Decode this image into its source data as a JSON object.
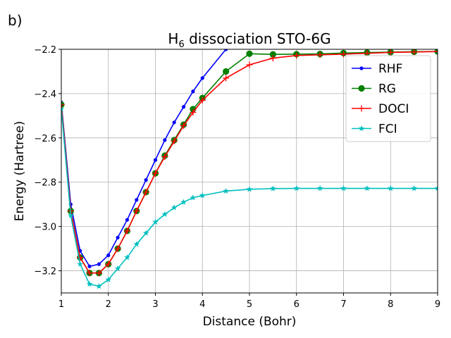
{
  "panel_label": "b)",
  "chart_data": {
    "type": "line",
    "title_prefix": "H",
    "title_subscript": "6",
    "title_suffix": " dissociation STO-6G",
    "xlabel": "Distance (Bohr)",
    "ylabel": "Energy (Hartree)",
    "xlim": [
      1,
      9
    ],
    "ylim": [
      -3.3,
      -2.2
    ],
    "grid": true,
    "legend_position": "top-right",
    "x_ticks": [
      1,
      2,
      3,
      4,
      5,
      6,
      7,
      8,
      9
    ],
    "x_tick_labels": [
      "1",
      "2",
      "3",
      "4",
      "5",
      "6",
      "7",
      "8",
      "9"
    ],
    "y_ticks": [
      -2.2,
      -2.4,
      -2.6,
      -2.8,
      -3.0,
      -3.2
    ],
    "y_tick_labels": [
      "−2.2",
      "−2.4",
      "−2.6",
      "−2.8",
      "−3.0",
      "−3.2"
    ],
    "series": [
      {
        "name": "RHF",
        "color": "#0000ff",
        "marker": "dot",
        "x": [
          1.0,
          1.2,
          1.4,
          1.6,
          1.8,
          2.0,
          2.2,
          2.4,
          2.6,
          2.8,
          3.0,
          3.2,
          3.4,
          3.6,
          3.8,
          4.0,
          4.5
        ],
        "y": [
          -2.44,
          -2.9,
          -3.11,
          -3.18,
          -3.17,
          -3.13,
          -3.05,
          -2.97,
          -2.88,
          -2.79,
          -2.7,
          -2.61,
          -2.53,
          -2.46,
          -2.39,
          -2.33,
          -2.2
        ]
      },
      {
        "name": "RG",
        "color": "#008000",
        "marker": "circle",
        "x": [
          1.0,
          1.2,
          1.4,
          1.6,
          1.8,
          2.0,
          2.2,
          2.4,
          2.6,
          2.8,
          3.0,
          3.2,
          3.4,
          3.6,
          3.8,
          4.0,
          4.5,
          5.0,
          5.5,
          6.0,
          6.5,
          7.0,
          7.5,
          8.0,
          8.5,
          9.0
        ],
        "y": [
          -2.45,
          -2.93,
          -3.14,
          -3.21,
          -3.21,
          -3.17,
          -3.1,
          -3.02,
          -2.93,
          -2.845,
          -2.76,
          -2.68,
          -2.61,
          -2.54,
          -2.47,
          -2.42,
          -2.3,
          -2.22,
          -2.223,
          -2.222,
          -2.221,
          -2.217,
          -2.215,
          -2.213,
          -2.211,
          -2.21
        ]
      },
      {
        "name": "DOCI",
        "color": "#ff0000",
        "marker": "plus",
        "x": [
          1.0,
          1.2,
          1.4,
          1.6,
          1.8,
          2.0,
          2.2,
          2.4,
          2.6,
          2.8,
          3.0,
          3.2,
          3.4,
          3.6,
          3.8,
          4.0,
          4.5,
          5.0,
          5.5,
          6.0,
          6.5,
          7.0,
          7.5,
          8.0,
          8.5,
          9.0
        ],
        "y": [
          -2.45,
          -2.93,
          -3.14,
          -3.21,
          -3.21,
          -3.17,
          -3.1,
          -3.02,
          -2.93,
          -2.845,
          -2.76,
          -2.685,
          -2.615,
          -2.545,
          -2.485,
          -2.43,
          -2.33,
          -2.27,
          -2.24,
          -2.228,
          -2.225,
          -2.222,
          -2.218,
          -2.214,
          -2.212,
          -2.21
        ]
      },
      {
        "name": "FCI",
        "color": "#00bfbf",
        "marker": "star",
        "x": [
          1.0,
          1.2,
          1.4,
          1.6,
          1.8,
          2.0,
          2.2,
          2.4,
          2.6,
          2.8,
          3.0,
          3.2,
          3.4,
          3.6,
          3.8,
          4.0,
          4.5,
          5.0,
          5.5,
          6.0,
          6.5,
          7.0,
          7.5,
          8.0,
          8.5,
          9.0
        ],
        "y": [
          -2.47,
          -2.95,
          -3.17,
          -3.26,
          -3.27,
          -3.24,
          -3.19,
          -3.14,
          -3.08,
          -3.03,
          -2.98,
          -2.945,
          -2.915,
          -2.89,
          -2.87,
          -2.86,
          -2.84,
          -2.832,
          -2.829,
          -2.828,
          -2.828,
          -2.828,
          -2.828,
          -2.828,
          -2.828,
          -2.828
        ]
      }
    ]
  }
}
